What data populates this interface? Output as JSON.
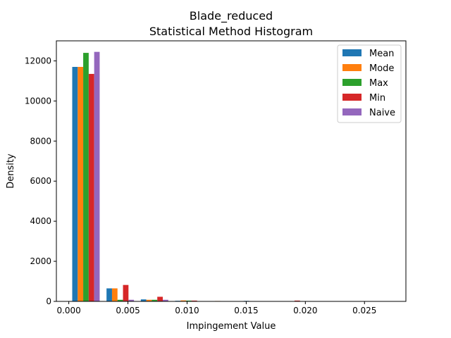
{
  "chart_data": {
    "type": "bar",
    "title_line1": "Blade_reduced",
    "title_line2": "Statistical Method Histogram",
    "xlabel": "Impingement Value",
    "ylabel": "Density",
    "xlim": [
      -0.00105,
      0.0285
    ],
    "ylim": [
      0,
      13000
    ],
    "xticks": [
      0.0,
      0.005,
      0.01,
      0.015,
      0.02,
      0.025
    ],
    "xtick_labels": [
      "0.000",
      "0.005",
      "0.010",
      "0.015",
      "0.020",
      "0.025"
    ],
    "yticks": [
      0,
      2000,
      4000,
      6000,
      8000,
      10000,
      12000
    ],
    "ytick_labels": [
      "0",
      "2000",
      "4000",
      "6000",
      "8000",
      "10000",
      "12000"
    ],
    "bin_edges": [
      0.0,
      0.0029,
      0.0058,
      0.0087,
      0.0116,
      0.0145,
      0.0174,
      0.0203,
      0.0232,
      0.0261,
      0.029
    ],
    "legend_position": "upper right",
    "series": [
      {
        "name": "Mean",
        "color": "#1f77b4",
        "values": [
          11700,
          650,
          100,
          30,
          0,
          25,
          0,
          0,
          0,
          0
        ]
      },
      {
        "name": "Mode",
        "color": "#ff7f0e",
        "values": [
          11700,
          650,
          80,
          50,
          20,
          0,
          0,
          0,
          0,
          0
        ]
      },
      {
        "name": "Max",
        "color": "#2ca02c",
        "values": [
          12400,
          80,
          80,
          40,
          0,
          0,
          0,
          0,
          0,
          0
        ]
      },
      {
        "name": "Min",
        "color": "#d62728",
        "values": [
          11350,
          820,
          230,
          40,
          0,
          0,
          40,
          0,
          0,
          0
        ]
      },
      {
        "name": "Naive",
        "color": "#9467bd",
        "values": [
          12450,
          80,
          80,
          0,
          0,
          0,
          0,
          0,
          0,
          0
        ]
      }
    ]
  }
}
